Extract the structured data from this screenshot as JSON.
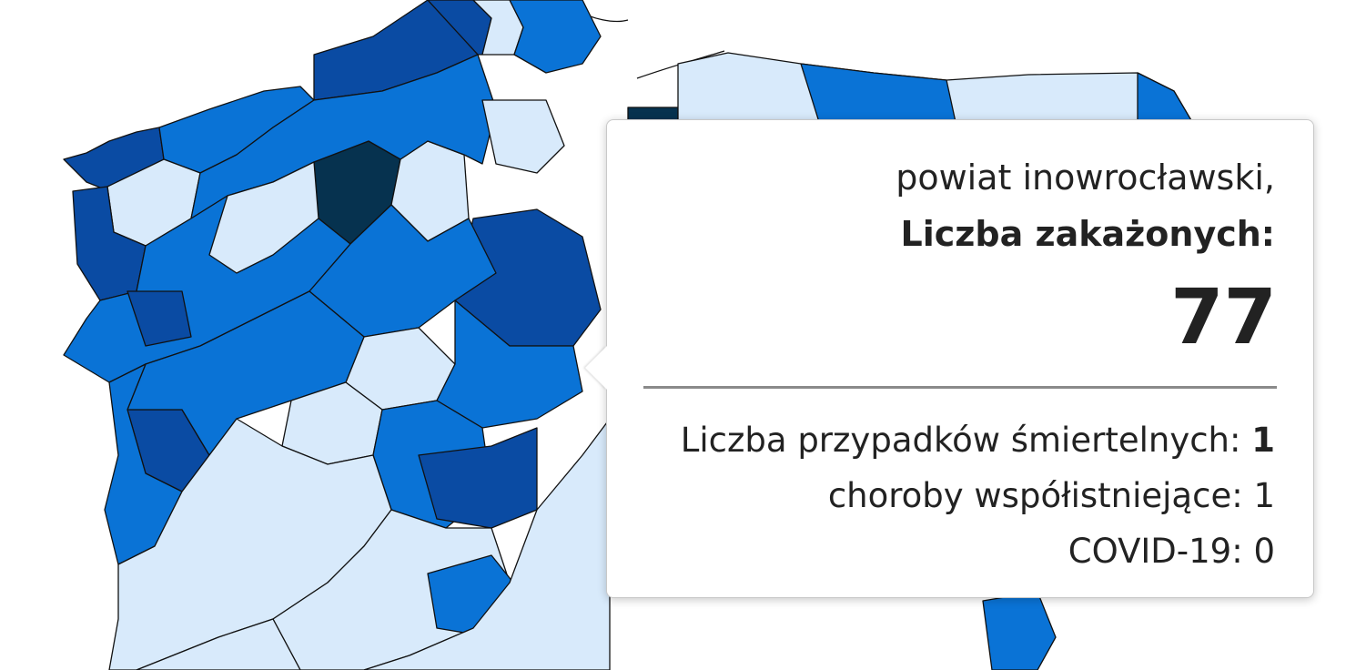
{
  "map": {
    "legend_colors": {
      "lightest": "#d8eafb",
      "light": "#0a73d6",
      "medium": "#0d5fc4",
      "dark": "#0a4ba3",
      "darkest": "#06324f"
    },
    "regions": [
      {
        "id": "north-west-coast",
        "level": "dark"
      },
      {
        "id": "pomerania-west",
        "level": "light"
      },
      {
        "id": "pomerania-central",
        "level": "dark"
      },
      {
        "id": "kashubia",
        "level": "dark"
      },
      {
        "id": "gdansk-bay",
        "level": "lightest"
      },
      {
        "id": "gdansk-area",
        "level": "light"
      },
      {
        "id": "elblag",
        "level": "darkest"
      },
      {
        "id": "warmia",
        "level": "lightest"
      },
      {
        "id": "mazury-north",
        "level": "light"
      },
      {
        "id": "podlasie-north",
        "level": "light"
      },
      {
        "id": "lubusz-north",
        "level": "lightest"
      },
      {
        "id": "pila",
        "level": "darkest"
      },
      {
        "id": "chojnice",
        "level": "lightest"
      },
      {
        "id": "bydgoszcz",
        "level": "light"
      },
      {
        "id": "torun",
        "level": "lightest"
      },
      {
        "id": "inowroclaw",
        "level": "dark"
      },
      {
        "id": "west-border",
        "level": "dark"
      },
      {
        "id": "gorzow",
        "level": "light"
      },
      {
        "id": "wielkopolska-north",
        "level": "lightest"
      },
      {
        "id": "poznan",
        "level": "light"
      },
      {
        "id": "konin",
        "level": "lightest"
      },
      {
        "id": "plock",
        "level": "dark"
      },
      {
        "id": "lodz-north",
        "level": "light"
      },
      {
        "id": "zielona-gora",
        "level": "dark"
      },
      {
        "id": "leszno",
        "level": "light"
      },
      {
        "id": "kalisz",
        "level": "lightest"
      },
      {
        "id": "sieradz",
        "level": "light"
      },
      {
        "id": "lodz",
        "level": "dark"
      },
      {
        "id": "lower-silesia-west",
        "level": "light"
      },
      {
        "id": "lower-silesia",
        "level": "lightest"
      },
      {
        "id": "opole",
        "level": "lightest"
      },
      {
        "id": "czestochowa",
        "level": "light"
      },
      {
        "id": "south",
        "level": "lightest"
      },
      {
        "id": "south-east",
        "level": "light"
      },
      {
        "id": "east",
        "level": "lightest"
      }
    ]
  },
  "tooltip": {
    "district": "powiat inowrocławski,",
    "infected_label": "Liczba zakażonych:",
    "infected_value": "77",
    "deaths_label": "Liczba przypadków śmiertelnych:",
    "deaths_value": "1",
    "comorbidities_label": "choroby współistniejące:",
    "comorbidities_value": "1",
    "covid_label": "COVID-19:",
    "covid_value": "0"
  }
}
